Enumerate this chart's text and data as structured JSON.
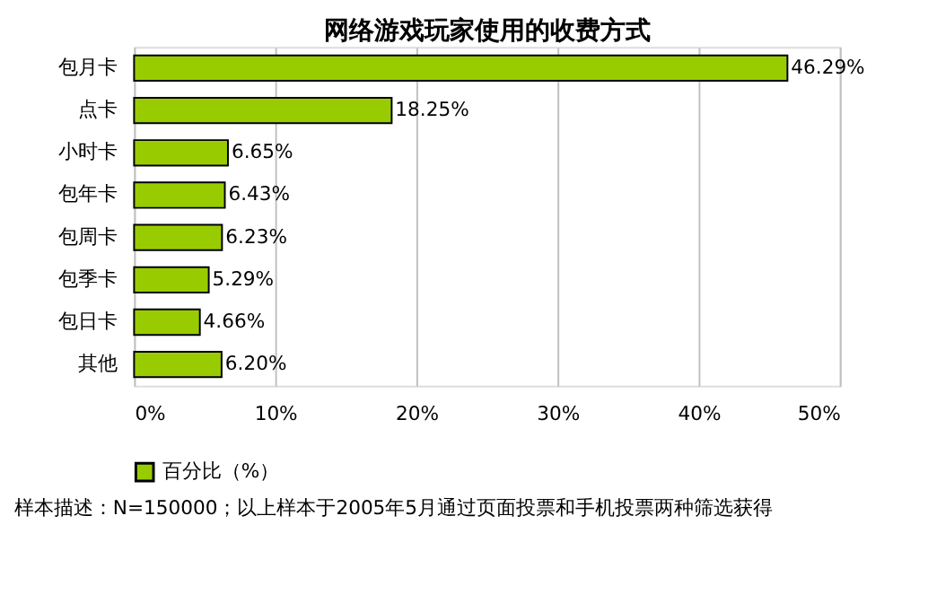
{
  "chart_data": {
    "type": "bar",
    "orientation": "horizontal",
    "title": "网络游戏玩家使用的收费方式",
    "categories": [
      "包月卡",
      "点卡",
      "小时卡",
      "包年卡",
      "包周卡",
      "包季卡",
      "包日卡",
      "其他"
    ],
    "series": [
      {
        "name": "百分比（%）",
        "color": "#99cc00",
        "values": [
          46.29,
          18.25,
          6.65,
          6.43,
          6.23,
          5.29,
          4.66,
          6.2
        ],
        "value_labels": [
          "46.29%",
          "18.25%",
          "6.65%",
          "6.43%",
          "6.23%",
          "5.29%",
          "4.66%",
          "6.20%"
        ]
      }
    ],
    "xlim": [
      0,
      50
    ],
    "xticks": [
      {
        "value": 0,
        "label": "0%"
      },
      {
        "value": 10,
        "label": "10%"
      },
      {
        "value": 20,
        "label": "20%"
      },
      {
        "value": 30,
        "label": "30%"
      },
      {
        "value": 40,
        "label": "40%"
      },
      {
        "value": 50,
        "label": "50%"
      }
    ],
    "grid": "x",
    "legend": "bottom",
    "annotations": [
      "样本描述：N=150000；以上样本于2005年5月通过页面投票和手机投票两种筛选获得"
    ]
  }
}
